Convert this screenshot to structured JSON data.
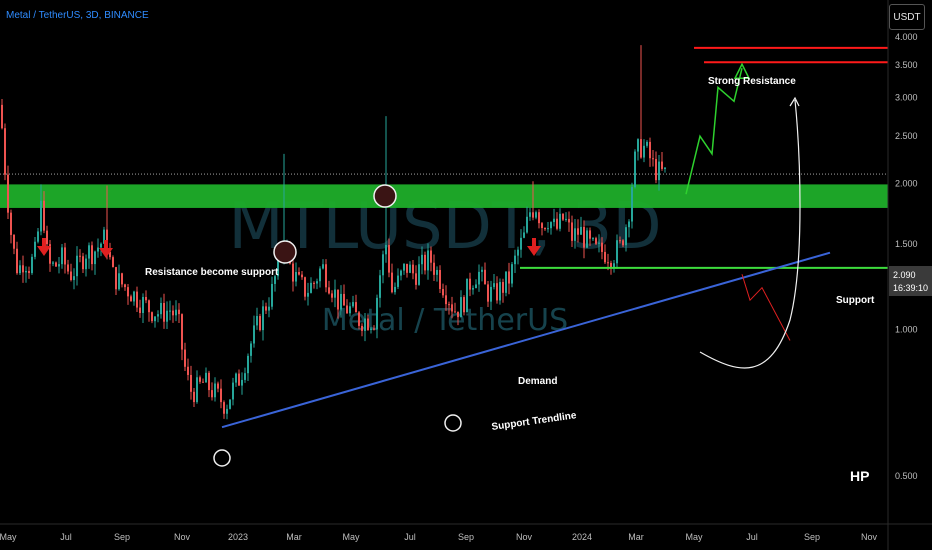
{
  "header": {
    "title": "Metal / TetherUS, 3D, BINANCE",
    "currency": "USDT"
  },
  "watermark": {
    "symbol": "MTLUSDT, 3D",
    "description": "Metal / TetherUS"
  },
  "price_label": {
    "price": "2.090",
    "countdown": "16:39:10"
  },
  "annotations": {
    "resistance_become_support": "Resistance become support",
    "strong_resistance": "Strong Resistance",
    "support": "Support",
    "demand": "Demand",
    "support_trendline": "Support Trendline",
    "hp": "HP"
  },
  "colors": {
    "background": "#000000",
    "up_candle": "#26a69a",
    "down_candle": "#ef5350",
    "support_zone": "#1fae2a",
    "resistance_line": "#ff1a1a",
    "trendline": "#3a64d8",
    "demand_line": "#3ddc3d",
    "arrow_green": "#2ed12e",
    "arrow_red": "#e02020",
    "arrow_white": "#f0f0f0",
    "price_label_bg": "#3a3a3a"
  },
  "chart_data": {
    "type": "candlestick",
    "timeframe": "3D",
    "scale": "log",
    "y_ticks": [
      4.0,
      3.5,
      3.0,
      2.5,
      2.0,
      1.5,
      1.0,
      0.5
    ],
    "y_tick_labels": [
      "4.000",
      "3.500",
      "3.000",
      "2.500",
      "2.000",
      "1.500",
      "1.000",
      "0.500"
    ],
    "x_ticks": [
      "May",
      "Jul",
      "Sep",
      "Nov",
      "2023",
      "Mar",
      "May",
      "Jul",
      "Sep",
      "Nov",
      "2024",
      "Mar",
      "May",
      "Jul",
      "Sep",
      "Nov"
    ],
    "last_price": 2.09,
    "support_zone": [
      1.78,
      1.99
    ],
    "strong_resistance": [
      3.55,
      3.8
    ],
    "demand_level": 1.34,
    "support_trendline": {
      "from": [
        "Dec 2022",
        0.63
      ],
      "to": [
        "Aug 2024",
        1.44
      ]
    },
    "projection_up": [
      [
        "Apr 2024",
        1.9
      ],
      [
        "Apr 2024",
        2.5
      ],
      [
        "May 2024",
        2.3
      ],
      [
        "May 2024",
        3.15
      ],
      [
        "Jun 2024",
        2.95
      ],
      [
        "Jun 2024",
        3.45
      ]
    ],
    "projection_down": [
      [
        "Jul 2024",
        1.3
      ],
      [
        "Jul 2024",
        1.15
      ],
      [
        "Jul 2024",
        1.22
      ],
      [
        "Aug 2024",
        0.95
      ]
    ],
    "close_path": [
      [
        0,
        2.9
      ],
      [
        6,
        2.0
      ],
      [
        12,
        1.5
      ],
      [
        18,
        1.32
      ],
      [
        24,
        1.4
      ],
      [
        30,
        1.35
      ],
      [
        36,
        1.45
      ],
      [
        42,
        1.85
      ],
      [
        48,
        1.35
      ],
      [
        55,
        1.35
      ],
      [
        62,
        1.4
      ],
      [
        70,
        1.3
      ],
      [
        78,
        1.35
      ],
      [
        86,
        1.45
      ],
      [
        94,
        1.45
      ],
      [
        100,
        1.5
      ],
      [
        106,
        1.55
      ],
      [
        112,
        1.3
      ],
      [
        120,
        1.25
      ],
      [
        130,
        1.2
      ],
      [
        140,
        1.15
      ],
      [
        150,
        1.1
      ],
      [
        160,
        1.08
      ],
      [
        170,
        1.1
      ],
      [
        178,
        1.05
      ],
      [
        184,
        0.85
      ],
      [
        190,
        0.75
      ],
      [
        196,
        0.75
      ],
      [
        204,
        0.78
      ],
      [
        212,
        0.75
      ],
      [
        220,
        0.72
      ],
      [
        226,
        0.7
      ],
      [
        232,
        0.75
      ],
      [
        240,
        0.8
      ],
      [
        248,
        0.9
      ],
      [
        256,
        1.0
      ],
      [
        264,
        1.1
      ],
      [
        272,
        1.2
      ],
      [
        278,
        1.35
      ],
      [
        284,
        1.55
      ],
      [
        290,
        1.35
      ],
      [
        298,
        1.25
      ],
      [
        306,
        1.2
      ],
      [
        314,
        1.25
      ],
      [
        322,
        1.35
      ],
      [
        330,
        1.25
      ],
      [
        340,
        1.12
      ],
      [
        350,
        1.1
      ],
      [
        358,
        1.05
      ],
      [
        366,
        1.05
      ],
      [
        374,
        1.05
      ],
      [
        380,
        1.3
      ],
      [
        386,
        1.5
      ],
      [
        392,
        1.2
      ],
      [
        398,
        1.25
      ],
      [
        406,
        1.35
      ],
      [
        414,
        1.3
      ],
      [
        422,
        1.35
      ],
      [
        430,
        1.4
      ],
      [
        438,
        1.3
      ],
      [
        446,
        1.2
      ],
      [
        454,
        1.1
      ],
      [
        462,
        1.12
      ],
      [
        470,
        1.25
      ],
      [
        478,
        1.32
      ],
      [
        486,
        1.2
      ],
      [
        494,
        1.18
      ],
      [
        502,
        1.22
      ],
      [
        510,
        1.28
      ],
      [
        518,
        1.45
      ],
      [
        524,
        1.55
      ],
      [
        530,
        1.75
      ],
      [
        536,
        1.8
      ],
      [
        542,
        1.65
      ],
      [
        548,
        1.7
      ],
      [
        556,
        1.6
      ],
      [
        564,
        1.7
      ],
      [
        572,
        1.55
      ],
      [
        580,
        1.6
      ],
      [
        588,
        1.5
      ],
      [
        596,
        1.45
      ],
      [
        604,
        1.45
      ],
      [
        612,
        1.42
      ],
      [
        620,
        1.48
      ],
      [
        628,
        1.7
      ],
      [
        636,
        2.3
      ],
      [
        642,
        2.4
      ],
      [
        648,
        2.3
      ],
      [
        654,
        2.15
      ],
      [
        660,
        2.1
      ],
      [
        666,
        2.09
      ]
    ]
  }
}
